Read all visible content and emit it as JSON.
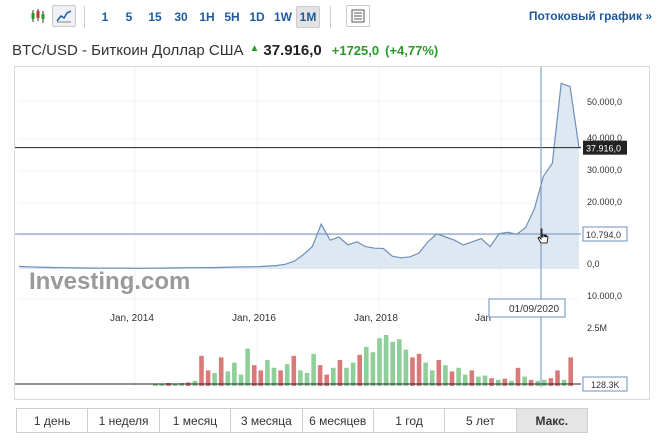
{
  "toolbar": {
    "icons": [
      "candlestick-icon",
      "line-chart-icon",
      "table-icon"
    ],
    "intervals": [
      {
        "label": "1",
        "active": false
      },
      {
        "label": "5",
        "active": false
      },
      {
        "label": "15",
        "active": false
      },
      {
        "label": "30",
        "active": false
      },
      {
        "label": "1H",
        "active": false
      },
      {
        "label": "5H",
        "active": false
      },
      {
        "label": "1D",
        "active": false
      },
      {
        "label": "1W",
        "active": false
      },
      {
        "label": "1M",
        "active": true
      }
    ],
    "stream_link": "Потоковый график »"
  },
  "header": {
    "instrument": "BTC/USD - Биткоин Доллар США",
    "price": "37.916,0",
    "change": "+1725,0",
    "change_pct": "(+4,77%)"
  },
  "colors": {
    "up": "#2a9a2a",
    "link": "#1e5aa0",
    "volume_up": "#8fcf9a",
    "volume_down": "#d97a7a",
    "area_fill": "#dde8f3",
    "line": "#6f8fb8"
  },
  "chart_data": {
    "type": "area",
    "x_labels": [
      "Jan, 2014",
      "Jan, 2016",
      "Jan, 2018",
      "Jan"
    ],
    "y_ticks": [
      "50.000,0",
      "40.000,0",
      "30.000,0",
      "20.000,0",
      "0,0",
      "10.000,0"
    ],
    "ylim": [
      0,
      60000
    ],
    "last_price_label": "37.916,0",
    "crosshair_value": "10.794,0",
    "crosshair_date": "01/09/2020",
    "volume_axis_label": "2.5M",
    "volume_current": "128.3K",
    "watermark": "Investing.com",
    "series": [
      {
        "values": [
          800,
          700,
          600,
          500,
          450,
          400,
          350,
          300,
          280,
          250,
          240,
          260,
          250,
          230,
          220,
          240,
          260,
          300,
          350,
          400,
          420,
          430,
          450,
          500,
          600,
          650,
          700,
          750,
          900,
          1100,
          1500,
          2500,
          4500,
          7000,
          14000,
          9000,
          10000,
          7500,
          8500,
          7000,
          6500,
          6400,
          4000,
          3500,
          3800,
          5000,
          8500,
          11000,
          10000,
          9000,
          7500,
          8500,
          9500,
          7000,
          11000,
          11500,
          10800,
          13000,
          19000,
          29000,
          33000,
          58000,
          57000,
          37900
        ]
      }
    ],
    "volume": [
      {
        "v": 0.05,
        "up": true
      },
      {
        "v": 0.05,
        "up": true
      },
      {
        "v": 0.06,
        "up": false
      },
      {
        "v": 0.05,
        "up": true
      },
      {
        "v": 0.06,
        "up": true
      },
      {
        "v": 0.07,
        "up": false
      },
      {
        "v": 0.1,
        "up": true
      },
      {
        "v": 0.58,
        "up": false
      },
      {
        "v": 0.3,
        "up": false
      },
      {
        "v": 0.25,
        "up": true
      },
      {
        "v": 0.55,
        "up": false
      },
      {
        "v": 0.28,
        "up": true
      },
      {
        "v": 0.45,
        "up": true
      },
      {
        "v": 0.22,
        "up": true
      },
      {
        "v": 0.72,
        "up": true
      },
      {
        "v": 0.4,
        "up": false
      },
      {
        "v": 0.3,
        "up": false
      },
      {
        "v": 0.5,
        "up": true
      },
      {
        "v": 0.35,
        "up": true
      },
      {
        "v": 0.3,
        "up": false
      },
      {
        "v": 0.42,
        "up": true
      },
      {
        "v": 0.58,
        "up": false
      },
      {
        "v": 0.3,
        "up": true
      },
      {
        "v": 0.25,
        "up": true
      },
      {
        "v": 0.62,
        "up": true
      },
      {
        "v": 0.4,
        "up": false
      },
      {
        "v": 0.22,
        "up": false
      },
      {
        "v": 0.35,
        "up": true
      },
      {
        "v": 0.5,
        "up": false
      },
      {
        "v": 0.35,
        "up": true
      },
      {
        "v": 0.45,
        "up": true
      },
      {
        "v": 0.6,
        "up": false
      },
      {
        "v": 0.75,
        "up": true
      },
      {
        "v": 0.65,
        "up": true
      },
      {
        "v": 0.92,
        "up": true
      },
      {
        "v": 0.98,
        "up": true
      },
      {
        "v": 0.85,
        "up": true
      },
      {
        "v": 0.9,
        "up": true
      },
      {
        "v": 0.7,
        "up": true
      },
      {
        "v": 0.55,
        "up": false
      },
      {
        "v": 0.62,
        "up": false
      },
      {
        "v": 0.45,
        "up": true
      },
      {
        "v": 0.3,
        "up": true
      },
      {
        "v": 0.5,
        "up": false
      },
      {
        "v": 0.4,
        "up": true
      },
      {
        "v": 0.28,
        "up": false
      },
      {
        "v": 0.35,
        "up": true
      },
      {
        "v": 0.22,
        "up": true
      },
      {
        "v": 0.3,
        "up": false
      },
      {
        "v": 0.18,
        "up": true
      },
      {
        "v": 0.2,
        "up": true
      },
      {
        "v": 0.15,
        "up": false
      },
      {
        "v": 0.12,
        "up": true
      },
      {
        "v": 0.14,
        "up": false
      },
      {
        "v": 0.1,
        "up": true
      },
      {
        "v": 0.35,
        "up": false
      },
      {
        "v": 0.18,
        "up": true
      },
      {
        "v": 0.12,
        "up": false
      },
      {
        "v": 0.1,
        "up": true
      },
      {
        "v": 0.12,
        "up": true
      },
      {
        "v": 0.15,
        "up": false
      },
      {
        "v": 0.3,
        "up": false
      },
      {
        "v": 0.12,
        "up": true
      },
      {
        "v": 0.55,
        "up": false
      }
    ]
  },
  "ranges": [
    {
      "label": "1 день",
      "active": false
    },
    {
      "label": "1 неделя",
      "active": false
    },
    {
      "label": "1 месяц",
      "active": false
    },
    {
      "label": "3 месяца",
      "active": false
    },
    {
      "label": "6 месяцев",
      "active": false
    },
    {
      "label": "1 год",
      "active": false
    },
    {
      "label": "5 лет",
      "active": false
    },
    {
      "label": "Макс.",
      "active": true
    }
  ]
}
